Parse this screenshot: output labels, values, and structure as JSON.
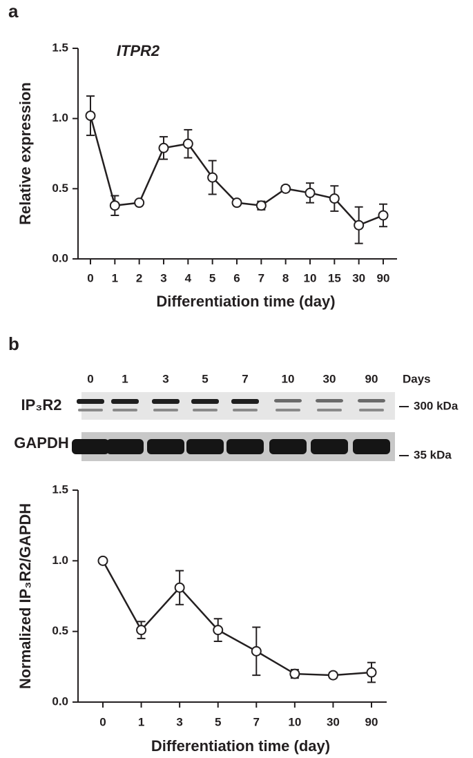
{
  "panel_labels": [
    "a",
    "b"
  ],
  "blot": {
    "lanes": [
      "0",
      "1",
      "3",
      "5",
      "7",
      "10",
      "30",
      "90"
    ],
    "lane_unit": "Days",
    "rows": [
      {
        "name": "IP₃R2",
        "marker": "300 kDa"
      },
      {
        "name": "GAPDH",
        "marker": "35 kDa"
      }
    ]
  },
  "chart_data": [
    {
      "type": "line",
      "title": "ITPR2",
      "x_label": "Differentiation time (day)",
      "y_label": "Relative expression",
      "categories": [
        "0",
        "1",
        "2",
        "3",
        "4",
        "5",
        "6",
        "7",
        "8",
        "10",
        "15",
        "30",
        "90"
      ],
      "values": [
        1.02,
        0.38,
        0.4,
        0.79,
        0.82,
        0.58,
        0.4,
        0.38,
        0.5,
        0.47,
        0.43,
        0.24,
        0.31
      ],
      "errors": [
        0.14,
        0.07,
        0.01,
        0.08,
        0.1,
        0.12,
        0.01,
        0.03,
        0.02,
        0.07,
        0.09,
        0.13,
        0.08
      ],
      "color": "#231f20",
      "ylim": [
        0,
        1.5
      ],
      "yticks": [
        {
          "value": 0,
          "label": "0.0"
        },
        0.5,
        {
          "value": 1,
          "label": "1.0"
        },
        1.5
      ]
    },
    {
      "type": "line",
      "x_label": "Differentiation time (day)",
      "y_label": "Normalized IP₃R2/GAPDH",
      "categories": [
        "0",
        "1",
        "3",
        "5",
        "7",
        "10",
        "30",
        "90"
      ],
      "values": [
        1.0,
        0.51,
        0.81,
        0.51,
        0.36,
        0.2,
        0.19,
        0.21
      ],
      "errors": [
        0,
        0.06,
        0.12,
        0.08,
        0.17,
        0.03,
        0.02,
        0.07
      ],
      "color": "#231f20",
      "ylim": [
        0,
        1.5
      ],
      "yticks": [
        {
          "value": 0,
          "label": "0.0"
        },
        0.5,
        {
          "value": 1,
          "label": "1.0"
        },
        1.5
      ]
    }
  ]
}
